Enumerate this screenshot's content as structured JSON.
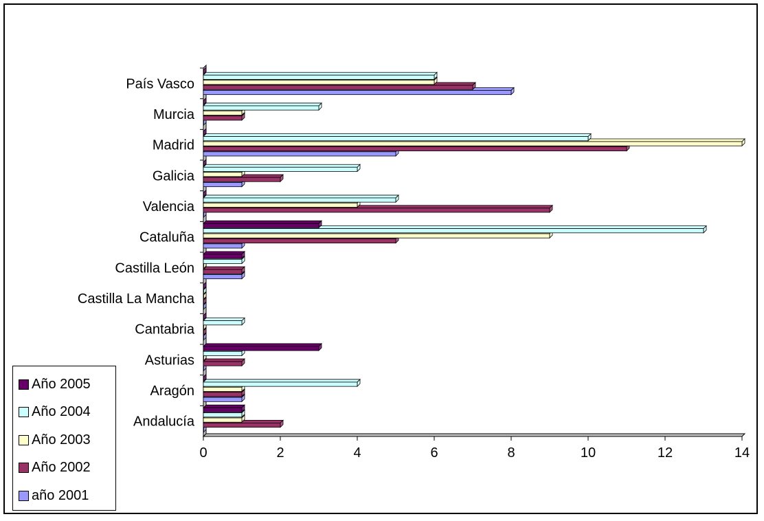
{
  "chart_data": {
    "type": "bar",
    "orientation": "horizontal",
    "categories": [
      "Andalucía",
      "Aragón",
      "Asturias",
      "Cantabria",
      "Castilla La Mancha",
      "Castilla León",
      "Cataluña",
      "Valencia",
      "Galicia",
      "Madrid",
      "Murcia",
      "País Vasco"
    ],
    "series": [
      {
        "name": "año 2001",
        "color": "#9999ff",
        "values": [
          0,
          1,
          0,
          0,
          0,
          1,
          1,
          0,
          1,
          5,
          0,
          8
        ]
      },
      {
        "name": "Año 2002",
        "color": "#993366",
        "values": [
          2,
          1,
          1,
          0,
          0,
          1,
          5,
          9,
          2,
          11,
          1,
          7
        ]
      },
      {
        "name": "Año 2003",
        "color": "#ffffcc",
        "values": [
          1,
          1,
          0,
          0,
          0,
          0,
          9,
          4,
          1,
          14,
          1,
          6
        ]
      },
      {
        "name": "Año 2004",
        "color": "#ccffff",
        "values": [
          1,
          4,
          1,
          1,
          0,
          1,
          13,
          5,
          4,
          10,
          3,
          6
        ]
      },
      {
        "name": "Año 2005",
        "color": "#660066",
        "values": [
          1,
          0,
          3,
          0,
          0,
          1,
          3,
          0,
          0,
          0,
          0,
          0
        ]
      }
    ],
    "xlim": [
      0,
      14
    ],
    "xticks": [
      "0",
      "2",
      "4",
      "6",
      "8",
      "10",
      "12",
      "14"
    ],
    "legend_position": "bottom-left",
    "legend_order": [
      "Año 2005",
      "Año 2004",
      "Año 2003",
      "Año 2002",
      "año 2001"
    ],
    "grid": false
  }
}
